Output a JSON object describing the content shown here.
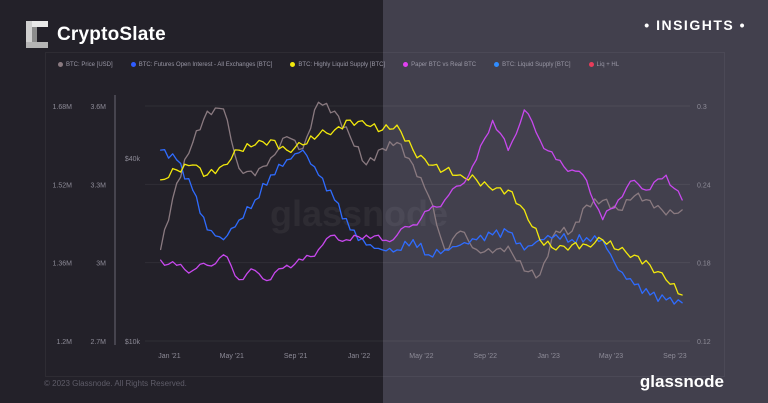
{
  "header": {
    "brand": "CryptoSlate",
    "badge": "• INSIGHTS •"
  },
  "footer": {
    "copyright": "© 2023 Glassnode. All Rights Reserved.",
    "logo": "glassnode"
  },
  "watermark": "glassnode",
  "colors": {
    "price": "#8a7a80",
    "oi": "#2f5cff",
    "hl": "#f2e90c",
    "paper": "#c03ce8",
    "liquid": "#2f8cff",
    "liqhl": "#e83c5a"
  },
  "chart_data": {
    "type": "line",
    "legend": [
      {
        "name": "BTC: Price [USD]",
        "color": "#8a7a80"
      },
      {
        "name": "BTC: Futures Open Interest - All Exchanges [BTC]",
        "color": "#2f5cff"
      },
      {
        "name": "BTC: Highly Liquid Supply [BTC]",
        "color": "#f2e90c"
      },
      {
        "name": "Paper BTC vs Real BTC",
        "color": "#e040f0"
      },
      {
        "name": "BTC: Liquid Supply [BTC]",
        "color": "#2f8cff"
      },
      {
        "name": "Liq + HL",
        "color": "#e83c5a"
      }
    ],
    "legend_placement": "top",
    "x_ticks": [
      "Jan '21",
      "May '21",
      "Sep '21",
      "Jan '22",
      "May '22",
      "Sep '22",
      "Jan '23",
      "May '23",
      "Sep '23"
    ],
    "x_tick_dates": [
      "2021-01-01",
      "2021-05-01",
      "2021-09-01",
      "2022-01-01",
      "2022-05-01",
      "2022-09-01",
      "2023-01-01",
      "2023-05-01",
      "2023-09-01"
    ],
    "xlim": [
      "2020-11-15",
      "2023-09-30"
    ],
    "axes": {
      "left1": {
        "ticks": [
          "1.68M",
          "1.52M",
          "1.36M",
          "1.2M"
        ],
        "ylim": [
          1.2,
          1.68
        ]
      },
      "left2": {
        "ticks": [
          "3.6M",
          "3.3M",
          "3M",
          "2.7M"
        ],
        "ylim": [
          2.7,
          3.6
        ]
      },
      "price": {
        "ticks": [
          "$40k",
          "$10k"
        ],
        "scale": "log"
      },
      "right": {
        "ticks": [
          "0.3",
          "0.24",
          "0.18",
          "0.12"
        ],
        "ylim": [
          0.12,
          0.3
        ]
      }
    },
    "months": [
      "2020-12",
      "2021-01",
      "2021-02",
      "2021-03",
      "2021-04",
      "2021-05",
      "2021-06",
      "2021-07",
      "2021-08",
      "2021-09",
      "2021-10",
      "2021-11",
      "2021-12",
      "2022-01",
      "2022-02",
      "2022-03",
      "2022-04",
      "2022-05",
      "2022-06",
      "2022-07",
      "2022-08",
      "2022-09",
      "2022-10",
      "2022-11",
      "2022-12",
      "2023-01",
      "2023-02",
      "2023-03",
      "2023-04",
      "2023-05",
      "2023-06",
      "2023-07",
      "2023-08",
      "2023-09"
    ],
    "series": [
      {
        "name": "BTC: Price [USD]",
        "axis": "price",
        "color": "#8a7a80",
        "values": [
          20000,
          33000,
          45000,
          57000,
          58000,
          37000,
          35000,
          40000,
          47000,
          43000,
          61000,
          57000,
          47000,
          38000,
          43000,
          45000,
          38000,
          30000,
          20000,
          23000,
          20000,
          19500,
          20500,
          17000,
          16500,
          23000,
          23000,
          28000,
          29000,
          27000,
          30000,
          29000,
          26000,
          27000
        ]
      },
      {
        "name": "BTC: Futures Open Interest - All Exchanges [BTC]",
        "axis": "left1",
        "color": "#2f6cff",
        "values": [
          1.59,
          1.57,
          1.508,
          1.427,
          1.407,
          1.447,
          1.488,
          1.539,
          1.57,
          1.59,
          1.539,
          1.488,
          1.427,
          1.396,
          1.386,
          1.386,
          1.407,
          1.376,
          1.386,
          1.396,
          1.407,
          1.417,
          1.423,
          1.386,
          1.407,
          1.417,
          1.407,
          1.411,
          1.407,
          1.345,
          1.315,
          1.294,
          1.284,
          1.278
        ]
      },
      {
        "name": "BTC: Highly Liquid Supply [BTC]",
        "axis": "left2",
        "color": "#f2e90c",
        "values": [
          3.317,
          3.355,
          3.374,
          3.336,
          3.374,
          3.431,
          3.451,
          3.47,
          3.431,
          3.451,
          3.489,
          3.508,
          3.546,
          3.527,
          3.508,
          3.527,
          3.431,
          3.374,
          3.355,
          3.336,
          3.317,
          3.278,
          3.278,
          3.202,
          3.087,
          3.049,
          3.068,
          3.068,
          3.087,
          3.049,
          3.029,
          2.991,
          2.934,
          2.876
        ]
      },
      {
        "name": "Paper BTC vs Real BTC",
        "axis": "right",
        "color": "#c848ee",
        "values": [
          0.182,
          0.178,
          0.174,
          0.178,
          0.186,
          0.167,
          0.174,
          0.167,
          0.178,
          0.182,
          0.19,
          0.201,
          0.197,
          0.201,
          0.197,
          0.201,
          0.209,
          0.22,
          0.228,
          0.239,
          0.259,
          0.289,
          0.266,
          0.297,
          0.274,
          0.259,
          0.251,
          0.243,
          0.213,
          0.228,
          0.243,
          0.236,
          0.247,
          0.228
        ]
      }
    ]
  }
}
